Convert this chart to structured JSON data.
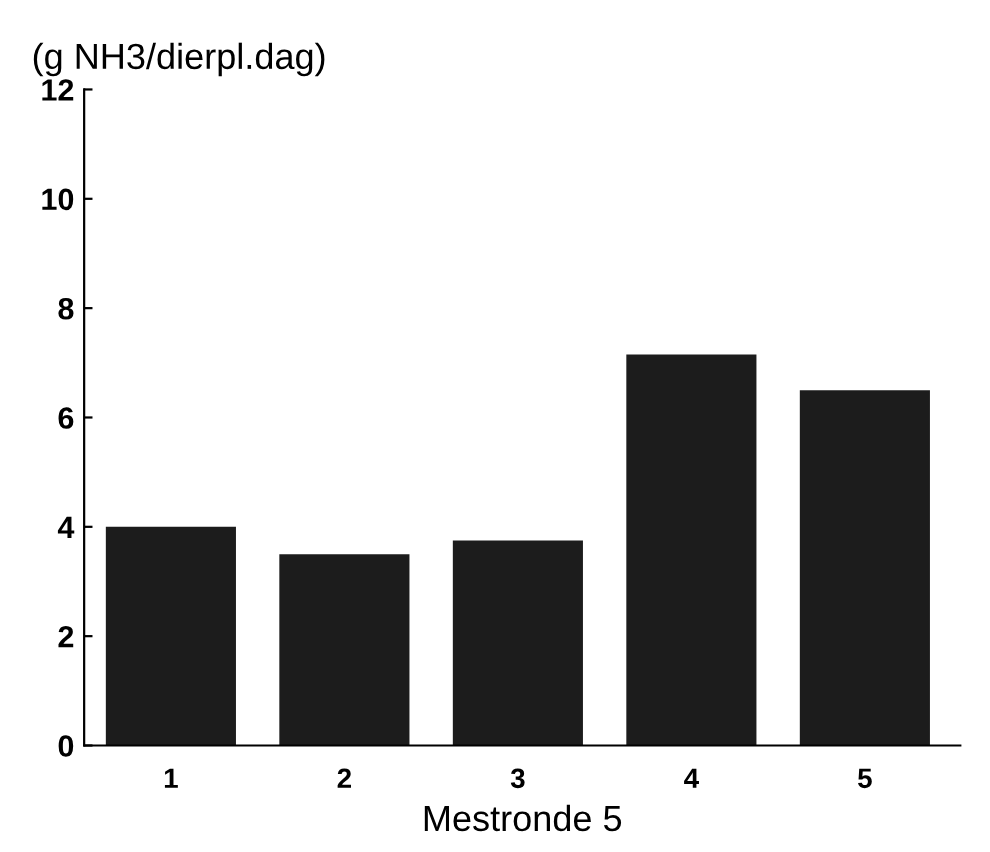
{
  "chart_data": {
    "type": "bar",
    "ylabel": "(g NH3/dierpl.dag)",
    "xlabel": "Mestronde 5",
    "categories": [
      "1",
      "2",
      "3",
      "4",
      "5"
    ],
    "values": [
      4.0,
      3.5,
      3.75,
      7.15,
      6.5
    ],
    "color": "#1c1c1c",
    "ylim": [
      0,
      12
    ],
    "yticks": [
      0,
      2,
      4,
      6,
      8,
      10,
      12
    ],
    "grid": false
  }
}
